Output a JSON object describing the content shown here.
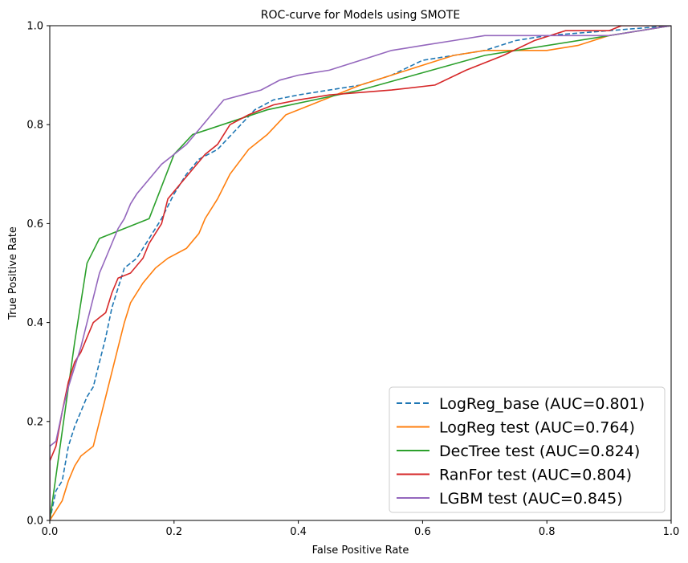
{
  "chart_data": {
    "type": "line",
    "title": "ROC-curve for Models using SMOTE",
    "xlabel": "False Positive Rate",
    "ylabel": "True Positive Rate",
    "xlim": [
      0,
      1
    ],
    "ylim": [
      0,
      1
    ],
    "xticks": [
      "0.0",
      "0.2",
      "0.4",
      "0.6",
      "0.8",
      "1.0"
    ],
    "yticks": [
      "0.0",
      "0.2",
      "0.4",
      "0.6",
      "0.8",
      "1.0"
    ],
    "grid": false,
    "legend_position": "lower-right",
    "series": [
      {
        "name": "LogReg_base (AUC=0.801)",
        "color": "#1f77b4",
        "dash": "dashed",
        "points": [
          [
            0,
            0
          ],
          [
            0.01,
            0.06
          ],
          [
            0.02,
            0.08
          ],
          [
            0.03,
            0.15
          ],
          [
            0.04,
            0.19
          ],
          [
            0.05,
            0.22
          ],
          [
            0.06,
            0.25
          ],
          [
            0.07,
            0.27
          ],
          [
            0.08,
            0.32
          ],
          [
            0.09,
            0.37
          ],
          [
            0.1,
            0.43
          ],
          [
            0.11,
            0.47
          ],
          [
            0.12,
            0.51
          ],
          [
            0.14,
            0.53
          ],
          [
            0.16,
            0.57
          ],
          [
            0.18,
            0.61
          ],
          [
            0.2,
            0.66
          ],
          [
            0.22,
            0.7
          ],
          [
            0.24,
            0.73
          ],
          [
            0.27,
            0.75
          ],
          [
            0.3,
            0.79
          ],
          [
            0.33,
            0.83
          ],
          [
            0.36,
            0.85
          ],
          [
            0.4,
            0.86
          ],
          [
            0.45,
            0.87
          ],
          [
            0.5,
            0.88
          ],
          [
            0.55,
            0.9
          ],
          [
            0.6,
            0.93
          ],
          [
            0.65,
            0.94
          ],
          [
            0.7,
            0.95
          ],
          [
            0.75,
            0.97
          ],
          [
            0.8,
            0.98
          ],
          [
            0.9,
            0.99
          ],
          [
            1.0,
            1.0
          ]
        ]
      },
      {
        "name": "LogReg test (AUC=0.764)",
        "color": "#ff7f0e",
        "dash": "solid",
        "points": [
          [
            0,
            0
          ],
          [
            0.01,
            0.02
          ],
          [
            0.02,
            0.04
          ],
          [
            0.03,
            0.08
          ],
          [
            0.04,
            0.11
          ],
          [
            0.05,
            0.13
          ],
          [
            0.07,
            0.15
          ],
          [
            0.08,
            0.2
          ],
          [
            0.09,
            0.25
          ],
          [
            0.1,
            0.3
          ],
          [
            0.11,
            0.35
          ],
          [
            0.12,
            0.4
          ],
          [
            0.13,
            0.44
          ],
          [
            0.15,
            0.48
          ],
          [
            0.17,
            0.51
          ],
          [
            0.19,
            0.53
          ],
          [
            0.22,
            0.55
          ],
          [
            0.24,
            0.58
          ],
          [
            0.25,
            0.61
          ],
          [
            0.27,
            0.65
          ],
          [
            0.29,
            0.7
          ],
          [
            0.32,
            0.75
          ],
          [
            0.35,
            0.78
          ],
          [
            0.38,
            0.82
          ],
          [
            0.42,
            0.84
          ],
          [
            0.46,
            0.86
          ],
          [
            0.5,
            0.88
          ],
          [
            0.55,
            0.9
          ],
          [
            0.6,
            0.92
          ],
          [
            0.65,
            0.94
          ],
          [
            0.7,
            0.95
          ],
          [
            0.8,
            0.95
          ],
          [
            0.85,
            0.96
          ],
          [
            0.9,
            0.98
          ],
          [
            0.95,
            0.99
          ],
          [
            1.0,
            1.0
          ]
        ]
      },
      {
        "name": "DecTree test (AUC=0.824)",
        "color": "#2ca02c",
        "dash": "solid",
        "points": [
          [
            0,
            0
          ],
          [
            0.04,
            0.36
          ],
          [
            0.06,
            0.52
          ],
          [
            0.08,
            0.57
          ],
          [
            0.16,
            0.61
          ],
          [
            0.2,
            0.74
          ],
          [
            0.23,
            0.78
          ],
          [
            0.35,
            0.83
          ],
          [
            0.5,
            0.87
          ],
          [
            0.7,
            0.94
          ],
          [
            1.0,
            1.0
          ]
        ]
      },
      {
        "name": "RanFor test (AUC=0.804)",
        "color": "#d62728",
        "dash": "solid",
        "points": [
          [
            0,
            0
          ],
          [
            0.0,
            0.12
          ],
          [
            0.01,
            0.15
          ],
          [
            0.02,
            0.22
          ],
          [
            0.03,
            0.28
          ],
          [
            0.04,
            0.32
          ],
          [
            0.05,
            0.34
          ],
          [
            0.06,
            0.37
          ],
          [
            0.07,
            0.4
          ],
          [
            0.08,
            0.41
          ],
          [
            0.09,
            0.42
          ],
          [
            0.1,
            0.46
          ],
          [
            0.11,
            0.49
          ],
          [
            0.13,
            0.5
          ],
          [
            0.15,
            0.53
          ],
          [
            0.16,
            0.56
          ],
          [
            0.18,
            0.6
          ],
          [
            0.19,
            0.65
          ],
          [
            0.21,
            0.68
          ],
          [
            0.23,
            0.71
          ],
          [
            0.25,
            0.74
          ],
          [
            0.27,
            0.76
          ],
          [
            0.29,
            0.8
          ],
          [
            0.32,
            0.82
          ],
          [
            0.36,
            0.84
          ],
          [
            0.4,
            0.85
          ],
          [
            0.45,
            0.86
          ],
          [
            0.55,
            0.87
          ],
          [
            0.62,
            0.88
          ],
          [
            0.67,
            0.91
          ],
          [
            0.73,
            0.94
          ],
          [
            0.78,
            0.97
          ],
          [
            0.83,
            0.99
          ],
          [
            0.9,
            0.99
          ],
          [
            0.92,
            1.0
          ],
          [
            1.0,
            1.0
          ]
        ]
      },
      {
        "name": "LGBM test (AUC=0.845)",
        "color": "#9467bd",
        "dash": "solid",
        "points": [
          [
            0,
            0
          ],
          [
            0.0,
            0.15
          ],
          [
            0.01,
            0.16
          ],
          [
            0.02,
            0.22
          ],
          [
            0.03,
            0.27
          ],
          [
            0.04,
            0.31
          ],
          [
            0.05,
            0.35
          ],
          [
            0.06,
            0.4
          ],
          [
            0.07,
            0.45
          ],
          [
            0.08,
            0.5
          ],
          [
            0.09,
            0.53
          ],
          [
            0.1,
            0.56
          ],
          [
            0.11,
            0.59
          ],
          [
            0.12,
            0.61
          ],
          [
            0.13,
            0.64
          ],
          [
            0.14,
            0.66
          ],
          [
            0.16,
            0.69
          ],
          [
            0.18,
            0.72
          ],
          [
            0.2,
            0.74
          ],
          [
            0.22,
            0.76
          ],
          [
            0.24,
            0.79
          ],
          [
            0.26,
            0.82
          ],
          [
            0.28,
            0.85
          ],
          [
            0.31,
            0.86
          ],
          [
            0.34,
            0.87
          ],
          [
            0.37,
            0.89
          ],
          [
            0.4,
            0.9
          ],
          [
            0.45,
            0.91
          ],
          [
            0.5,
            0.93
          ],
          [
            0.55,
            0.95
          ],
          [
            0.6,
            0.96
          ],
          [
            0.65,
            0.97
          ],
          [
            0.7,
            0.98
          ],
          [
            0.8,
            0.98
          ],
          [
            0.9,
            0.98
          ],
          [
            0.95,
            0.99
          ],
          [
            1.0,
            1.0
          ]
        ]
      }
    ]
  }
}
